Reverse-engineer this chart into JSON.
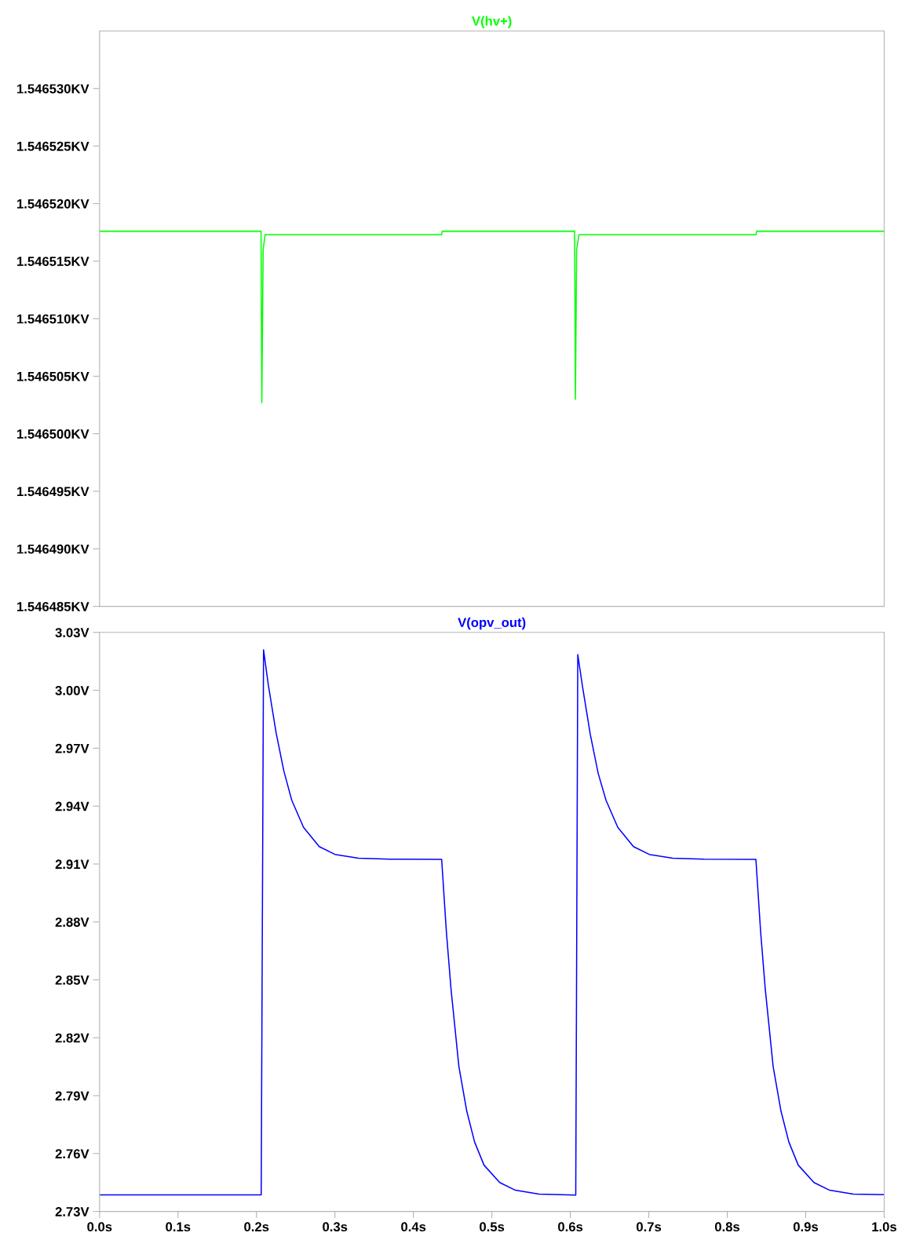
{
  "chart_data": [
    {
      "type": "line",
      "title": "V(hv+)",
      "tick_labels": "y",
      "grid": false,
      "xlim": [
        0,
        1.0
      ],
      "ylim": [
        1.546485,
        1.546535
      ],
      "yticks": [
        {
          "value": 1.546485,
          "label": "1.546485KV"
        },
        {
          "value": 1.54649,
          "label": "1.546490KV"
        },
        {
          "value": 1.546495,
          "label": "1.546495KV"
        },
        {
          "value": 1.5465,
          "label": "1.546500KV"
        },
        {
          "value": 1.546505,
          "label": "1.546505KV"
        },
        {
          "value": 1.54651,
          "label": "1.546510KV"
        },
        {
          "value": 1.546515,
          "label": "1.546515KV"
        },
        {
          "value": 1.54652,
          "label": "1.546520KV"
        },
        {
          "value": 1.546525,
          "label": "1.546525KV"
        },
        {
          "value": 1.54653,
          "label": "1.546530KV"
        }
      ],
      "series": [
        {
          "color": "#00ff00",
          "x": [
            0,
            0.2058,
            0.2068,
            0.2085,
            0.211,
            0.4358,
            0.4368,
            0.6055,
            0.6065,
            0.608,
            0.611,
            0.8365,
            0.8375,
            1.0
          ],
          "values": [
            1.5465176,
            1.5465176,
            1.5465027,
            1.546516,
            1.5465173,
            1.5465173,
            1.5465176,
            1.5465176,
            1.546503,
            1.546516,
            1.5465173,
            1.5465173,
            1.5465176,
            1.5465176
          ]
        }
      ]
    },
    {
      "type": "line",
      "title": "V(opv_out)",
      "grid": false,
      "xlim": [
        0,
        1.0
      ],
      "xticks": [
        {
          "value": 0,
          "label": "0.0s"
        },
        {
          "value": 0.1,
          "label": "0.1s"
        },
        {
          "value": 0.2,
          "label": "0.2s"
        },
        {
          "value": 0.3,
          "label": "0.3s"
        },
        {
          "value": 0.4,
          "label": "0.4s"
        },
        {
          "value": 0.5,
          "label": "0.5s"
        },
        {
          "value": 0.6,
          "label": "0.6s"
        },
        {
          "value": 0.7,
          "label": "0.7s"
        },
        {
          "value": 0.8,
          "label": "0.8s"
        },
        {
          "value": 0.9,
          "label": "0.9s"
        },
        {
          "value": 1.0,
          "label": "1.0s"
        }
      ],
      "ylim": [
        2.73,
        3.03
      ],
      "yticks": [
        {
          "value": 2.73,
          "label": "2.73V"
        },
        {
          "value": 2.76,
          "label": "2.76V"
        },
        {
          "value": 2.79,
          "label": "2.79V"
        },
        {
          "value": 2.82,
          "label": "2.82V"
        },
        {
          "value": 2.85,
          "label": "2.85V"
        },
        {
          "value": 2.88,
          "label": "2.88V"
        },
        {
          "value": 2.91,
          "label": "2.91V"
        },
        {
          "value": 2.94,
          "label": "2.94V"
        },
        {
          "value": 2.97,
          "label": "2.97V"
        },
        {
          "value": 3.0,
          "label": "3.00V"
        },
        {
          "value": 3.03,
          "label": "3.03V"
        }
      ],
      "series": [
        {
          "color": "#0000ff",
          "x": [
            0,
            0.206,
            0.209,
            0.215,
            0.225,
            0.235,
            0.245,
            0.26,
            0.28,
            0.3,
            0.33,
            0.37,
            0.436,
            0.442,
            0.448,
            0.458,
            0.468,
            0.478,
            0.49,
            0.51,
            0.53,
            0.56,
            0.6063,
            0.6069,
            0.6095,
            0.6155,
            0.6255,
            0.6355,
            0.6455,
            0.6605,
            0.6805,
            0.7005,
            0.7305,
            0.7705,
            0.8365,
            0.8425,
            0.8485,
            0.8585,
            0.8685,
            0.8785,
            0.8905,
            0.9105,
            0.9305,
            0.9605,
            1.0
          ],
          "values": [
            2.7386,
            2.7386,
            3.021,
            3.003,
            2.978,
            2.958,
            2.943,
            2.929,
            2.919,
            2.915,
            2.913,
            2.9125,
            2.9124,
            2.875,
            2.845,
            2.805,
            2.782,
            2.766,
            2.754,
            2.745,
            2.741,
            2.739,
            2.7385,
            2.7385,
            3.0185,
            3.002,
            2.977,
            2.957,
            2.943,
            2.929,
            2.919,
            2.915,
            2.913,
            2.9125,
            2.9124,
            2.875,
            2.845,
            2.805,
            2.782,
            2.766,
            2.754,
            2.745,
            2.741,
            2.739,
            2.7387
          ]
        }
      ]
    }
  ]
}
